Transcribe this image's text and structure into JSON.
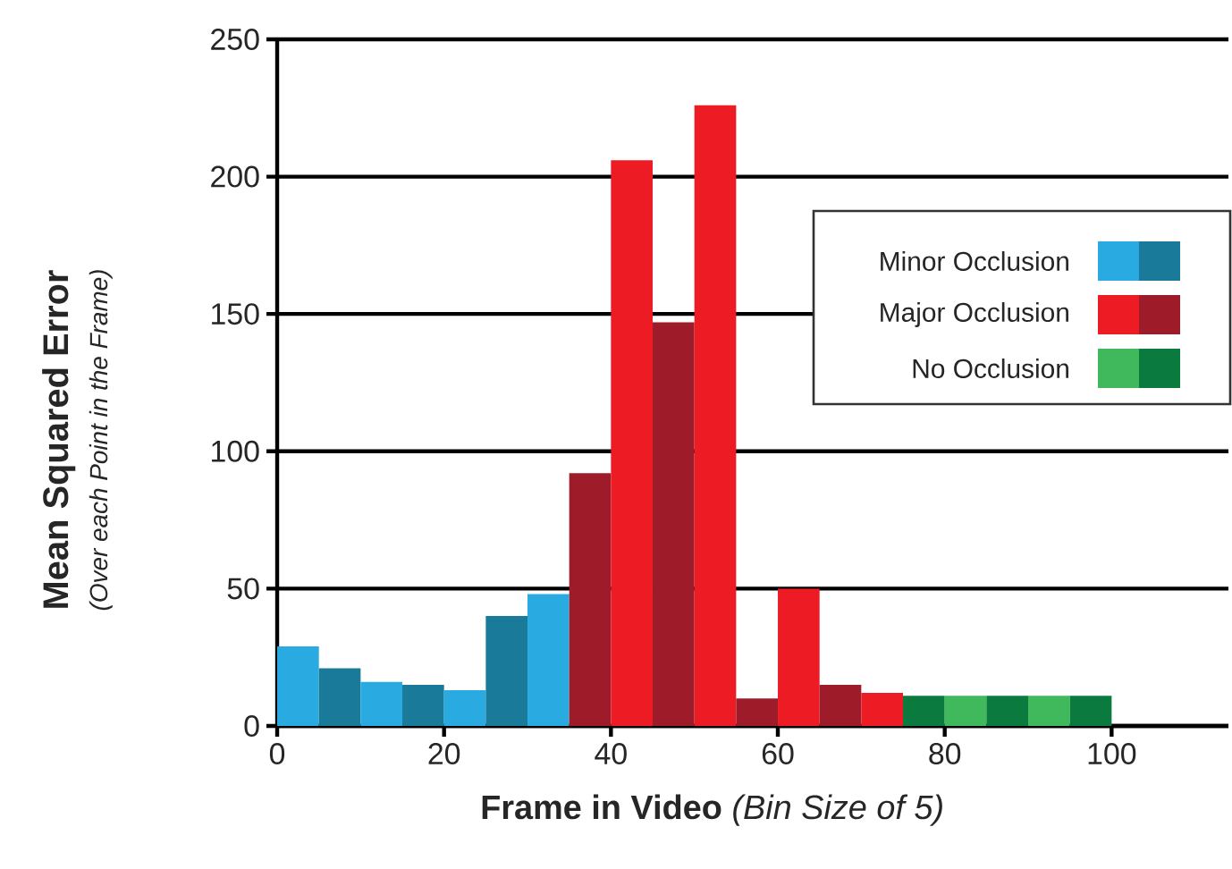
{
  "chart_data": {
    "type": "histogram",
    "xlabel": "**Frame in Video** *(Bin Size of 5)*",
    "ylabel": "Mean Squared Error",
    "annotations": [
      "(Over each Point in the Frame)"
    ],
    "bins": [
      0,
      5,
      10,
      15,
      20,
      25,
      30,
      35,
      40,
      45,
      50,
      55,
      60,
      65,
      70,
      75,
      80,
      85,
      90,
      95,
      100
    ],
    "series": [
      {
        "name": "Minor Occlusion",
        "color": "#29abe2",
        "values": [
          29,
          21,
          16,
          15,
          13,
          40,
          48,
          null,
          null,
          null,
          null,
          null,
          null,
          null,
          null,
          null,
          null,
          null,
          null,
          null
        ],
        "colors": [
          "#29abe2",
          "#1a7a99",
          "#29abe2",
          "#1a7a99",
          "#29abe2",
          "#1a7a99",
          "#29abe2",
          null,
          null,
          null,
          null,
          null,
          null,
          null,
          null,
          null,
          null,
          null,
          null,
          null
        ]
      },
      {
        "name": "Major Occlusion",
        "color": "#ed1c24",
        "values": [
          null,
          null,
          null,
          null,
          null,
          null,
          null,
          92,
          206,
          147,
          226,
          10,
          50,
          15,
          12,
          null,
          null,
          null,
          null,
          null
        ],
        "colors": [
          null,
          null,
          null,
          null,
          null,
          null,
          null,
          "#9e1b2a",
          "#ed1c24",
          "#9e1b2a",
          "#ed1c24",
          "#9e1b2a",
          "#ed1c24",
          "#9e1b2a",
          "#ed1c24",
          null,
          null,
          null,
          null,
          null
        ]
      },
      {
        "name": "No Occlusion",
        "color": "#40b85c",
        "values": [
          null,
          null,
          null,
          null,
          null,
          null,
          null,
          null,
          null,
          null,
          null,
          null,
          null,
          null,
          null,
          11,
          11,
          11,
          11,
          11
        ],
        "colors": [
          null,
          null,
          null,
          null,
          null,
          null,
          null,
          null,
          null,
          null,
          null,
          null,
          null,
          null,
          null,
          "#0a7a3e",
          "#40b85c",
          "#0a7a3e",
          "#40b85c",
          "#0a7a3e"
        ]
      }
    ],
    "xlim": [
      0,
      114
    ],
    "ylim": [
      0,
      250
    ],
    "xticks": [
      0,
      20,
      40,
      60,
      80,
      100
    ],
    "yticks": [
      0,
      50,
      100,
      150,
      200,
      250
    ],
    "grid": "y",
    "legend": "right"
  }
}
